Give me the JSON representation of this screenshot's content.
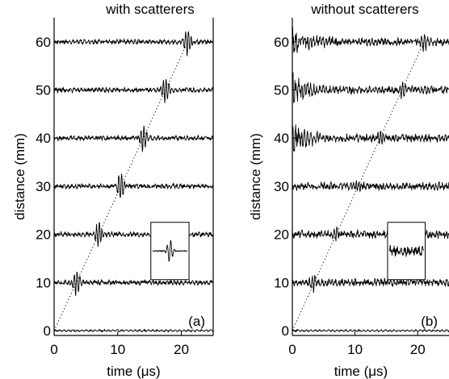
{
  "chart_data": [
    {
      "type": "line",
      "title": "with scatterers",
      "xlabel": "time (μs)",
      "ylabel": "distance (mm)",
      "xlim": [
        0,
        25
      ],
      "ylim": [
        -1,
        65
      ],
      "xticks": [
        0,
        10,
        20
      ],
      "yticks": [
        0,
        10,
        20,
        30,
        40,
        50,
        60
      ],
      "panel_label": "(a)",
      "inset": true,
      "grid": false,
      "trace_offsets_mm": [
        0,
        10,
        20,
        30,
        40,
        50,
        60
      ],
      "pulse_arrival_us": [
        0,
        3.5,
        7,
        10.5,
        14,
        17.5,
        21
      ],
      "reference_line": "dotted diagonal, from (0 us, 0 mm) to (21 us, 60 mm)"
    },
    {
      "type": "line",
      "title": "without scatterers",
      "xlabel": "time (μs)",
      "ylabel": "distance (mm)",
      "xlim": [
        0,
        25
      ],
      "ylim": [
        -1,
        65
      ],
      "xticks": [
        0,
        10,
        20
      ],
      "yticks": [
        0,
        10,
        20,
        30,
        40,
        50,
        60
      ],
      "panel_label": "(b)",
      "inset": true,
      "grid": false,
      "trace_offsets_mm": [
        0,
        10,
        20,
        30,
        40,
        50,
        60
      ],
      "pulse_arrival_us": [
        0,
        3.5,
        7,
        10.5,
        14,
        17.5,
        21
      ],
      "reference_line": "dotted diagonal, from (0 us, 0 mm) to (21 us, 60 mm)"
    }
  ],
  "colors": {
    "axis": "#000000",
    "trace": "#000000",
    "background": "#ffffff"
  }
}
